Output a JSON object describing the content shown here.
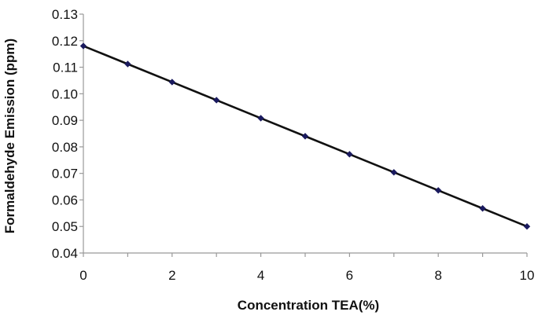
{
  "chart_data": {
    "type": "line",
    "title": "",
    "xlabel": "Concentration TEA(%)",
    "ylabel": "Formaldehyde Emission  (ppm)",
    "xlim": [
      0,
      10
    ],
    "ylim": [
      0.04,
      0.13
    ],
    "x_ticks": [
      "0",
      "2",
      "4",
      "6",
      "8",
      "10"
    ],
    "y_ticks": [
      "0.04",
      "0.05",
      "0.06",
      "0.07",
      "0.08",
      "0.09",
      "0.10",
      "0.11",
      "0.12",
      "0.13"
    ],
    "grid": false,
    "legend": "none",
    "series": [
      {
        "x": [
          0,
          1,
          2,
          3,
          4,
          5,
          6,
          7,
          8,
          9,
          10
        ],
        "y": [
          0.118,
          0.1112,
          0.1044,
          0.0976,
          0.0908,
          0.084,
          0.0772,
          0.0704,
          0.0636,
          0.0568,
          0.05
        ]
      }
    ],
    "colors": {
      "line": "#111111",
      "marker": "#1a1a5e",
      "axis": "#999999"
    }
  }
}
